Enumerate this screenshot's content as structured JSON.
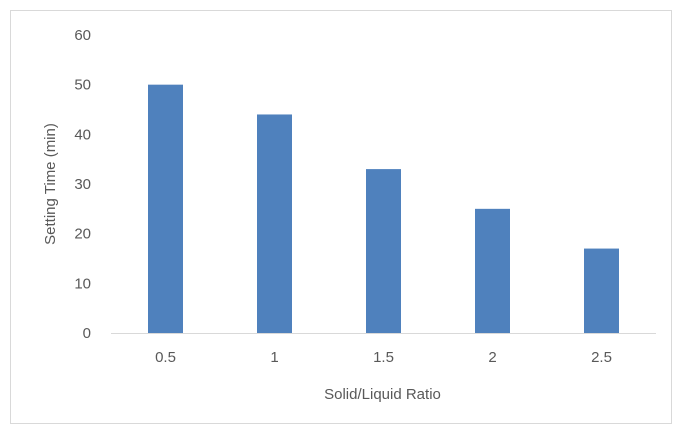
{
  "chart_data": {
    "type": "bar",
    "title": "",
    "xlabel": "Solid/Liquid Ratio",
    "ylabel": "Setting Time (min)",
    "categories": [
      "0.5",
      "1",
      "1.5",
      "2",
      "2.5"
    ],
    "values": [
      50,
      44,
      33,
      25,
      17
    ],
    "ylim": [
      0,
      60
    ],
    "yticks": [
      0,
      10,
      20,
      30,
      40,
      50,
      60
    ],
    "grid": false,
    "legend": "none",
    "bar_color": "#4f81bd",
    "axis_color": "#d9d9d9",
    "text_color": "#595959"
  }
}
